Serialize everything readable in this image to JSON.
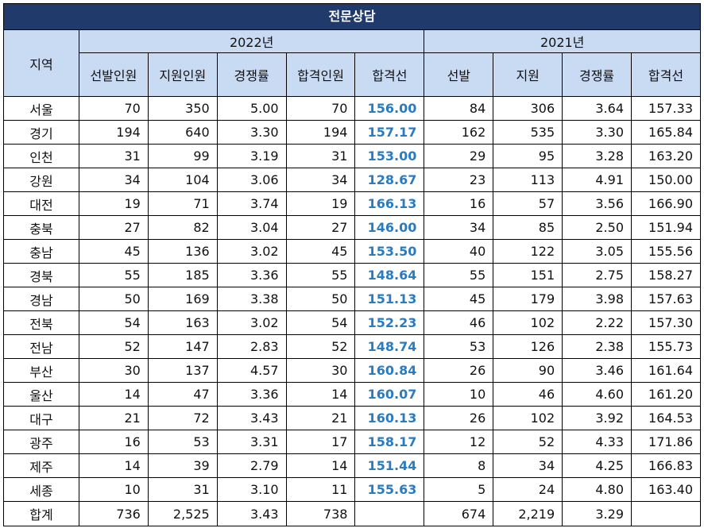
{
  "title": "전문상담",
  "headers": {
    "region": "지역",
    "year_2022": "2022년",
    "year_2021": "2021년",
    "cols_2022": [
      "선발인원",
      "지원인원",
      "경쟁률",
      "합격인원",
      "합격선"
    ],
    "cols_2021": [
      "선발",
      "지원",
      "경쟁률",
      "합격선"
    ]
  },
  "rows": [
    {
      "region": "서울",
      "v": [
        "70",
        "350",
        "5.00",
        "70",
        "156.00",
        "84",
        "306",
        "3.64",
        "157.33"
      ]
    },
    {
      "region": "경기",
      "v": [
        "194",
        "640",
        "3.30",
        "194",
        "157.17",
        "162",
        "535",
        "3.30",
        "165.84"
      ]
    },
    {
      "region": "인천",
      "v": [
        "31",
        "99",
        "3.19",
        "31",
        "153.00",
        "29",
        "95",
        "3.28",
        "163.20"
      ]
    },
    {
      "region": "강원",
      "v": [
        "34",
        "104",
        "3.06",
        "34",
        "128.67",
        "23",
        "113",
        "4.91",
        "150.00"
      ]
    },
    {
      "region": "대전",
      "v": [
        "19",
        "71",
        "3.74",
        "19",
        "166.13",
        "16",
        "57",
        "3.56",
        "166.90"
      ]
    },
    {
      "region": "충북",
      "v": [
        "27",
        "82",
        "3.04",
        "27",
        "146.00",
        "34",
        "85",
        "2.50",
        "151.94"
      ]
    },
    {
      "region": "충남",
      "v": [
        "45",
        "136",
        "3.02",
        "45",
        "153.50",
        "40",
        "122",
        "3.05",
        "155.56"
      ]
    },
    {
      "region": "경북",
      "v": [
        "55",
        "185",
        "3.36",
        "55",
        "148.64",
        "55",
        "151",
        "2.75",
        "158.27"
      ]
    },
    {
      "region": "경남",
      "v": [
        "50",
        "169",
        "3.38",
        "50",
        "151.13",
        "45",
        "179",
        "3.98",
        "157.63"
      ]
    },
    {
      "region": "전북",
      "v": [
        "54",
        "163",
        "3.02",
        "54",
        "152.23",
        "46",
        "102",
        "2.22",
        "157.30"
      ]
    },
    {
      "region": "전남",
      "v": [
        "52",
        "147",
        "2.83",
        "52",
        "148.74",
        "53",
        "126",
        "2.38",
        "155.73"
      ]
    },
    {
      "region": "부산",
      "v": [
        "30",
        "137",
        "4.57",
        "30",
        "160.84",
        "26",
        "90",
        "3.46",
        "161.64"
      ]
    },
    {
      "region": "울산",
      "v": [
        "14",
        "47",
        "3.36",
        "14",
        "160.07",
        "10",
        "46",
        "4.60",
        "161.20"
      ]
    },
    {
      "region": "대구",
      "v": [
        "21",
        "72",
        "3.43",
        "21",
        "160.13",
        "26",
        "102",
        "3.92",
        "164.53"
      ]
    },
    {
      "region": "광주",
      "v": [
        "16",
        "53",
        "3.31",
        "17",
        "158.17",
        "12",
        "52",
        "4.33",
        "171.86"
      ]
    },
    {
      "region": "제주",
      "v": [
        "14",
        "39",
        "2.79",
        "14",
        "151.44",
        "8",
        "34",
        "4.25",
        "166.83"
      ]
    },
    {
      "region": "세종",
      "v": [
        "10",
        "31",
        "3.10",
        "11",
        "155.63",
        "5",
        "24",
        "4.80",
        "163.40"
      ]
    }
  ],
  "total": {
    "region": "합계",
    "v": [
      "736",
      "2,525",
      "3.43",
      "738",
      "",
      "674",
      "2,219",
      "3.29",
      ""
    ]
  },
  "colors": {
    "title_bg": "#1f3a6b",
    "header_bg": "#c9daf3",
    "highlight": "#2a7cc2"
  }
}
